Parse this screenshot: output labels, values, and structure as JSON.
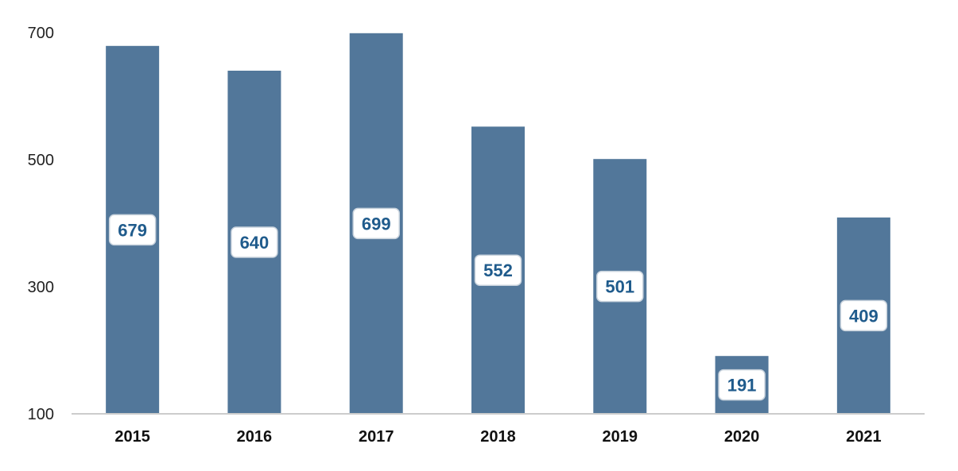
{
  "chart_data": {
    "type": "bar",
    "title": "",
    "xlabel": "",
    "ylabel": "",
    "categories": [
      "2015",
      "2016",
      "2017",
      "2018",
      "2019",
      "2020",
      "2021"
    ],
    "values": [
      679,
      640,
      699,
      552,
      501,
      191,
      409
    ],
    "ylim": [
      100,
      700
    ],
    "yticks": [
      100,
      300,
      500,
      700
    ],
    "grid": false,
    "legend": "none",
    "bar_color": "#52779a",
    "axis_color": "#cccccc",
    "data_label_color": "#1f5b8c"
  }
}
